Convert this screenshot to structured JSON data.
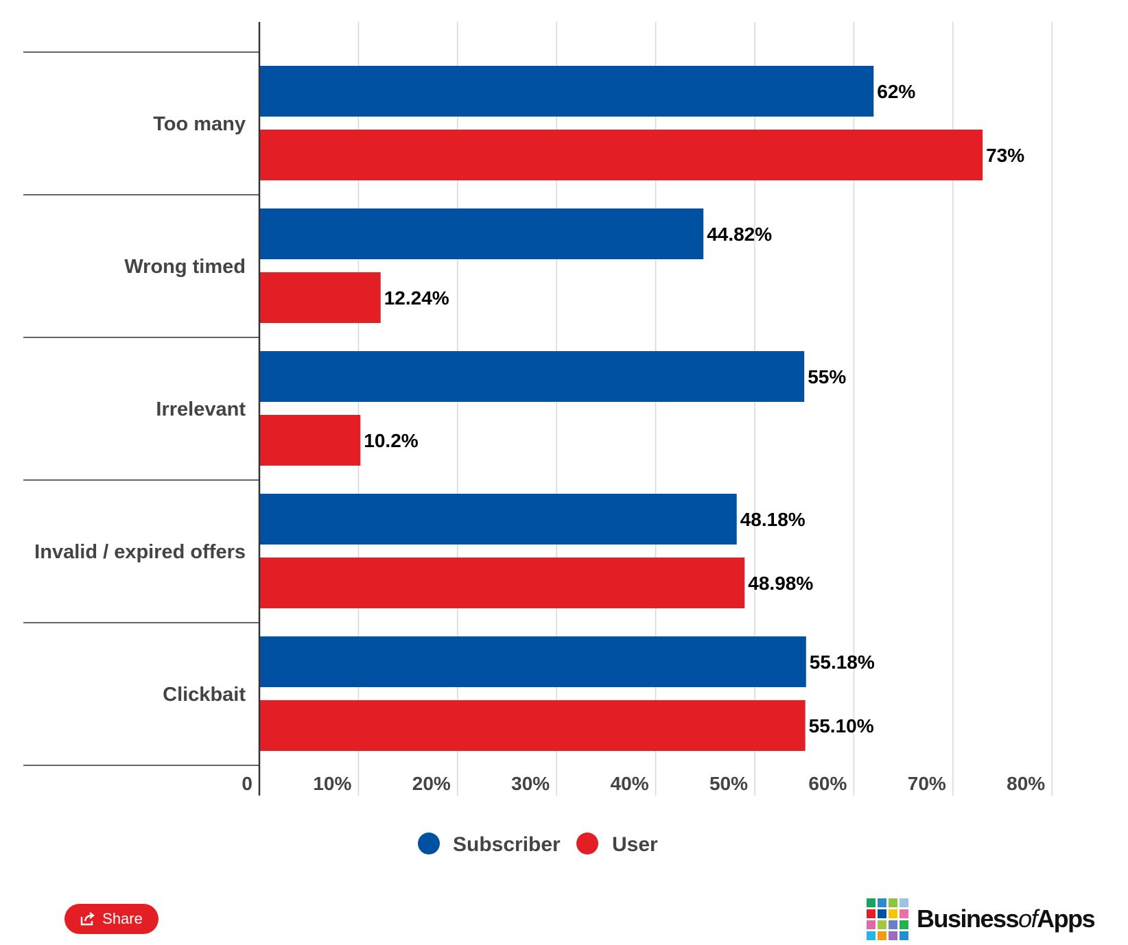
{
  "chart_data": {
    "type": "bar",
    "orientation": "horizontal",
    "categories": [
      "Too many",
      "Wrong timed",
      "Irrelevant",
      "Invalid / expired offers",
      "Clickbait"
    ],
    "series": [
      {
        "name": "Subscriber",
        "color": "#0051a2",
        "values": [
          62,
          44.82,
          55,
          48.18,
          55.18
        ],
        "labels": [
          "62%",
          "44.82%",
          "55%",
          "48.18%",
          "55.18%"
        ]
      },
      {
        "name": "User",
        "color": "#e31e24",
        "values": [
          73,
          12.24,
          10.2,
          48.98,
          55.1
        ],
        "labels": [
          "73%",
          "12.24%",
          "10.2%",
          "48.98%",
          "55.10%"
        ]
      }
    ],
    "xlim": [
      0,
      80
    ],
    "x_ticks": [
      "0",
      "10%",
      "20%",
      "30%",
      "40%",
      "50%",
      "60%",
      "70%",
      "80%"
    ],
    "grid": true,
    "legend_position": "bottom-center"
  },
  "share": {
    "label": "Share",
    "icon": "share-icon"
  },
  "brand": {
    "prefix": "Business",
    "of": "of",
    "suffix": "Apps",
    "icon": "logo-grid-icon"
  }
}
